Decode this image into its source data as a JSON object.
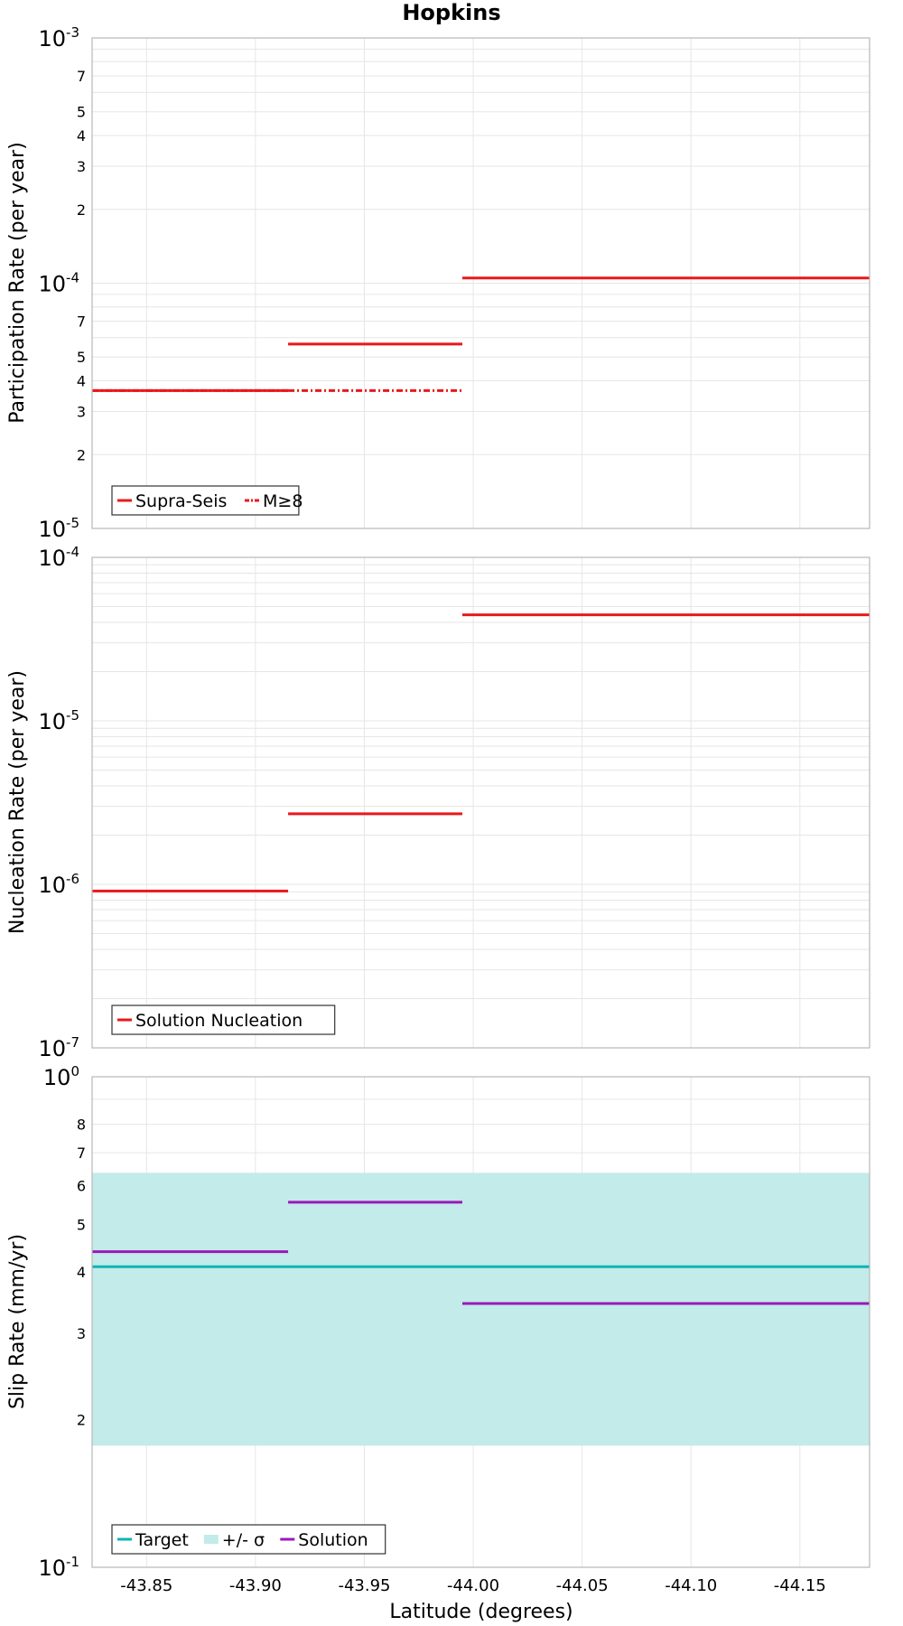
{
  "chart_data": {
    "title": "Hopkins",
    "xlabel": "Latitude (degrees)",
    "xlim": [
      -43.825,
      -44.182
    ],
    "x_ticks": [
      {
        "value": -43.85,
        "label": "-43.85"
      },
      {
        "value": -43.9,
        "label": "-43.90"
      },
      {
        "value": -43.95,
        "label": "-43.95"
      },
      {
        "value": -44.0,
        "label": "-44.00"
      },
      {
        "value": -44.05,
        "label": "-44.05"
      },
      {
        "value": -44.1,
        "label": "-44.10"
      },
      {
        "value": -44.15,
        "label": "-44.15"
      }
    ],
    "panels": [
      {
        "id": "participation",
        "type": "step",
        "yscale": "log",
        "ylabel": "Participation Rate (per year)",
        "ylim": [
          1e-05,
          0.001
        ],
        "major_ticks": [
          {
            "value": 0.001,
            "base": "10",
            "exp": "-3"
          },
          {
            "value": 0.0001,
            "base": "10",
            "exp": "-4"
          },
          {
            "value": 1e-05,
            "base": "10",
            "exp": "-5"
          }
        ],
        "minor_ticks": [
          {
            "value": 0.0007,
            "label": "7"
          },
          {
            "value": 0.0005,
            "label": "5"
          },
          {
            "value": 0.0004,
            "label": "4"
          },
          {
            "value": 0.0003,
            "label": "3"
          },
          {
            "value": 0.0002,
            "label": "2"
          },
          {
            "value": 7e-05,
            "label": "7"
          },
          {
            "value": 5e-05,
            "label": "5"
          },
          {
            "value": 4e-05,
            "label": "4"
          },
          {
            "value": 3e-05,
            "label": "3"
          },
          {
            "value": 2e-05,
            "label": "2"
          }
        ],
        "series": [
          {
            "name": "Supra-Seis",
            "color": "#e8181c",
            "style": "solid",
            "segments": [
              {
                "x0": -43.825,
                "x1": -43.915,
                "y": 3.65e-05
              },
              {
                "x0": -43.915,
                "x1": -43.995,
                "y": 5.65e-05
              },
              {
                "x0": -43.995,
                "x1": -44.182,
                "y": 0.000105
              }
            ]
          },
          {
            "name": "M≥8",
            "color": "#e8181c",
            "style": "dashdot",
            "segments": [
              {
                "x0": -43.825,
                "x1": -43.915,
                "y": 3.65e-05
              },
              {
                "x0": -43.915,
                "x1": -43.995,
                "y": 3.65e-05
              }
            ]
          }
        ],
        "legend": [
          "Supra-Seis",
          "M≥8"
        ]
      },
      {
        "id": "nucleation",
        "type": "step",
        "yscale": "log",
        "ylabel": "Nucleation Rate (per year)",
        "ylim": [
          1e-07,
          0.0001
        ],
        "major_ticks": [
          {
            "value": 0.0001,
            "base": "10",
            "exp": "-4"
          },
          {
            "value": 1e-05,
            "base": "10",
            "exp": "-5"
          },
          {
            "value": 1e-06,
            "base": "10",
            "exp": "-6"
          },
          {
            "value": 1e-07,
            "base": "10",
            "exp": "-7"
          }
        ],
        "minor_ticks": [],
        "series": [
          {
            "name": "Solution Nucleation",
            "color": "#e8181c",
            "style": "solid",
            "segments": [
              {
                "x0": -43.825,
                "x1": -43.915,
                "y": 9.1e-07
              },
              {
                "x0": -43.915,
                "x1": -43.995,
                "y": 2.7e-06
              },
              {
                "x0": -43.995,
                "x1": -44.182,
                "y": 4.45e-05
              }
            ]
          }
        ],
        "legend": [
          "Solution Nucleation"
        ]
      },
      {
        "id": "slip",
        "type": "step",
        "yscale": "log",
        "ylabel": "Slip Rate (mm/yr)",
        "ylim": [
          0.1,
          1.0
        ],
        "major_ticks": [
          {
            "value": 1.0,
            "base": "10",
            "exp": "0"
          },
          {
            "value": 0.1,
            "base": "10",
            "exp": "-1"
          }
        ],
        "minor_ticks": [
          {
            "value": 0.8,
            "label": "8"
          },
          {
            "value": 0.7,
            "label": "7"
          },
          {
            "value": 0.6,
            "label": "6"
          },
          {
            "value": 0.5,
            "label": "5"
          },
          {
            "value": 0.4,
            "label": "4"
          },
          {
            "value": 0.3,
            "label": "3"
          },
          {
            "value": 0.2,
            "label": "2"
          }
        ],
        "band": {
          "name": "+/- σ",
          "color": "#c2ebea",
          "y0": 0.177,
          "y1": 0.637
        },
        "series": [
          {
            "name": "Target",
            "color": "#12b3b3",
            "style": "solid",
            "segments": [
              {
                "x0": -43.825,
                "x1": -44.182,
                "y": 0.41
              }
            ]
          },
          {
            "name": "Solution",
            "color": "#9b19b8",
            "style": "solid",
            "segments": [
              {
                "x0": -43.825,
                "x1": -43.915,
                "y": 0.44
              },
              {
                "x0": -43.915,
                "x1": -43.995,
                "y": 0.555
              },
              {
                "x0": -43.995,
                "x1": -44.182,
                "y": 0.345
              }
            ]
          }
        ],
        "legend": [
          "Target",
          "+/- σ",
          "Solution"
        ]
      }
    ]
  }
}
